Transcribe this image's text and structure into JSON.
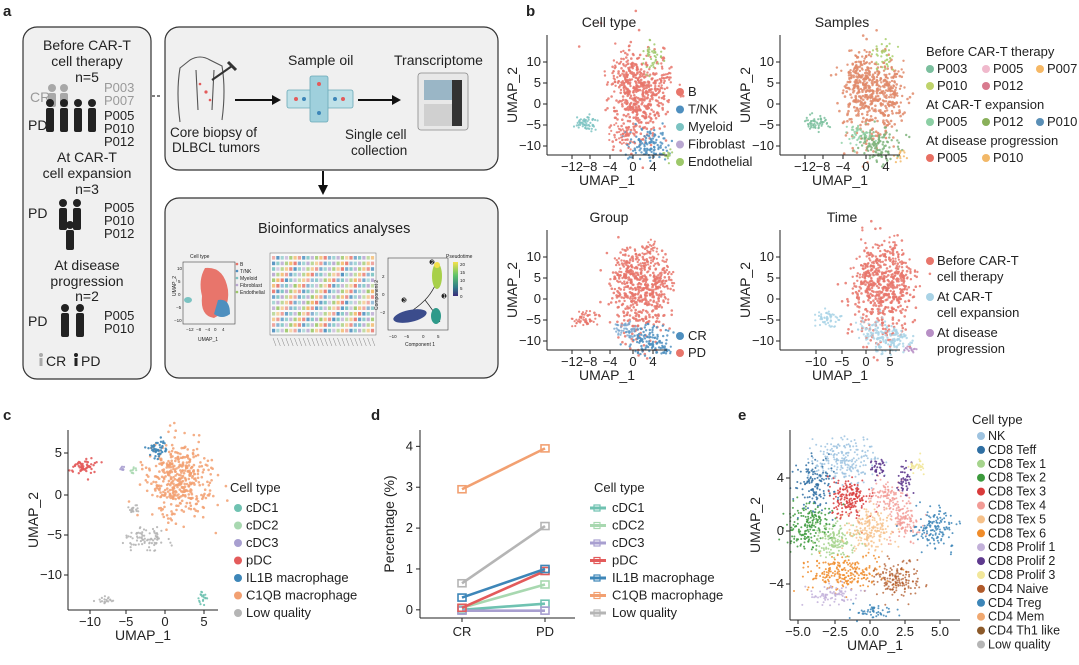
{
  "figure": {
    "panel_letters": {
      "a": "a",
      "b": "b",
      "c": "c",
      "d": "d",
      "e": "e"
    },
    "a": {
      "left": {
        "before_title_1": "Before CAR-T",
        "before_title_2": "cell therapy",
        "before_n": "n=5",
        "cr": "CR",
        "cr_ids": [
          "P003",
          "P007"
        ],
        "pd": "PD",
        "pd_ids": [
          "P005",
          "P010",
          "P012"
        ],
        "exp_title_1": "At CAR-T",
        "exp_title_2": "cell expansion",
        "exp_n": "n=3",
        "exp_pd": "PD",
        "exp_ids": [
          "P005",
          "P010",
          "P012"
        ],
        "prog_title_1": "At disease",
        "prog_title_2": "progression",
        "prog_n": "n=2",
        "prog_pd": "PD",
        "prog_ids": [
          "P005",
          "P010"
        ],
        "legend_cr": "CR",
        "legend_pd": "PD"
      },
      "workflow": {
        "biopsy_1": "Core biopsy of",
        "biopsy_2": "DLBCL tumors",
        "sample_oil": "Sample oil",
        "transcriptome": "Transcriptome",
        "single_cell_1": "Single cell",
        "single_cell_2": "collection",
        "bioinf": "Bioinformatics analyses",
        "mini_celltype": "Cell type",
        "mini_legend": [
          "B",
          "T/NK",
          "Myeloid",
          "Fibroblast",
          "Endothelial"
        ],
        "mini_xlabel": "UMAP_1",
        "mini_ylabel": "UMAP_2",
        "mini_xticks": [
          "−12",
          "−8",
          "−4",
          "0",
          "4"
        ],
        "mini_yticks": [
          "10",
          "5",
          "0",
          "−5",
          "−10"
        ],
        "pseudotime": "Pseudotime",
        "pt_ticks": [
          "20",
          "15",
          "10",
          "5",
          "0"
        ],
        "pt_xlabel": "Component 1",
        "pt_ylabel": "Component 2",
        "pt_xticks": [
          "−10",
          "−5",
          "0",
          "5"
        ],
        "pt_yticks": [
          "2",
          "0",
          "−2"
        ],
        "pt_states": [
          "1",
          "2",
          "3"
        ]
      }
    },
    "b": {
      "celltype": {
        "title": "Cell type",
        "xlabel": "UMAP_1",
        "ylabel": "UMAP_2",
        "xticks": [
          "−12",
          "−8",
          "−4",
          "0",
          "4"
        ],
        "yticks": [
          "10",
          "5",
          "0",
          "−5",
          "−10"
        ],
        "legend": [
          {
            "label": "B",
            "color": "#e8756b"
          },
          {
            "label": "T/NK",
            "color": "#4e8fbf"
          },
          {
            "label": "Myeloid",
            "color": "#7bc3c2"
          },
          {
            "label": "Fibroblast",
            "color": "#b9a7d1"
          },
          {
            "label": "Endothelial",
            "color": "#9dc86a"
          }
        ]
      },
      "samples": {
        "title": "Samples",
        "xlabel": "UMAP_1",
        "ylabel": "UMAP_2",
        "xticks": [
          "−12",
          "−8",
          "−4",
          "0",
          "4"
        ],
        "yticks": [
          "10",
          "5",
          "0",
          "−5",
          "−10"
        ],
        "groups": [
          {
            "heading": "Before CAR-T therapy",
            "items": [
              {
                "label": "P003",
                "color": "#7bbf9e"
              },
              {
                "label": "P005",
                "color": "#f0b9cc"
              },
              {
                "label": "P007",
                "color": "#f6b865"
              },
              {
                "label": "P010",
                "color": "#bfd36b"
              },
              {
                "label": "P012",
                "color": "#d87a8e"
              }
            ]
          },
          {
            "heading": "At CAR-T expansion",
            "items": [
              {
                "label": "P005",
                "color": "#8ccfa4"
              },
              {
                "label": "P012",
                "color": "#89b05a"
              },
              {
                "label": "P010",
                "color": "#5a8fb6"
              }
            ]
          },
          {
            "heading": "At disease progression",
            "items": [
              {
                "label": "P005",
                "color": "#e86f62"
              },
              {
                "label": "P010",
                "color": "#f2b868"
              }
            ]
          }
        ]
      },
      "group": {
        "title": "Group",
        "xlabel": "UMAP_1",
        "ylabel": "UMAP_2",
        "xticks": [
          "−12",
          "−8",
          "−4",
          "0",
          "4"
        ],
        "yticks": [
          "10",
          "5",
          "0",
          "−5",
          "−10"
        ],
        "legend": [
          {
            "label": "CR",
            "color": "#4e8fbf"
          },
          {
            "label": "PD",
            "color": "#e8756b"
          }
        ]
      },
      "time": {
        "title": "Time",
        "xlabel": "UMAP_1",
        "ylabel": "UMAP_2",
        "xticks": [
          "−10",
          "−5",
          "0",
          "5"
        ],
        "yticks": [
          "10",
          "5",
          "0",
          "−5",
          "−10"
        ],
        "legend": [
          {
            "label1": "Before CAR-T",
            "label2": "cell therapy",
            "color": "#e8756b"
          },
          {
            "label1": "At CAR-T",
            "label2": "cell expansion",
            "color": "#a9d3e6"
          },
          {
            "label1": "At disease",
            "label2": "progression",
            "color": "#b78fc5"
          }
        ]
      }
    },
    "c": {
      "xlabel": "UMAP_1",
      "ylabel": "UMAP_2",
      "xticks": [
        "−10",
        "−5",
        "0",
        "5"
      ],
      "yticks": [
        "5",
        "0",
        "−5",
        "−10"
      ],
      "legend_title": "Cell type",
      "legend": [
        {
          "label": "cDC1",
          "color": "#6fc2b1"
        },
        {
          "label": "cDC2",
          "color": "#a8d8b0"
        },
        {
          "label": "cDC3",
          "color": "#a89fd0"
        },
        {
          "label": "pDC",
          "color": "#e35b5b"
        },
        {
          "label": "IL1B macrophage",
          "color": "#3d86b8"
        },
        {
          "label": "C1QB macrophage",
          "color": "#f2a071"
        },
        {
          "label": "Low quality",
          "color": "#b5b5b5"
        }
      ]
    },
    "d": {
      "legend_title": "Cell type",
      "legend": [
        {
          "label": "cDC1",
          "color": "#6fc2b1"
        },
        {
          "label": "cDC2",
          "color": "#a8d8b0"
        },
        {
          "label": "cDC3",
          "color": "#a89fd0"
        },
        {
          "label": "pDC",
          "color": "#e35b5b"
        },
        {
          "label": "IL1B macrophage",
          "color": "#3d86b8"
        },
        {
          "label": "C1QB macrophage",
          "color": "#f2a071"
        },
        {
          "label": "Low quality",
          "color": "#b5b5b5"
        }
      ]
    },
    "e": {
      "xlabel": "UMAP_1",
      "ylabel": "UMAP_2",
      "xticks": [
        "−5.0",
        "−2.5",
        "0.0",
        "2.5",
        "5.0"
      ],
      "yticks": [
        "4",
        "0",
        "−4"
      ],
      "legend_title": "Cell type",
      "legend": [
        {
          "label": "NK",
          "color": "#9ec3e0"
        },
        {
          "label": "CD8 Teff",
          "color": "#2f6fa3"
        },
        {
          "label": "CD8 Tex 1",
          "color": "#a5d48c"
        },
        {
          "label": "CD8 Tex 2",
          "color": "#3c9a3c"
        },
        {
          "label": "CD8 Tex 3",
          "color": "#d93b3b"
        },
        {
          "label": "CD8 Tex 4",
          "color": "#f29b96"
        },
        {
          "label": "CD8 Tex 5",
          "color": "#f6c18a"
        },
        {
          "label": "CD8 Tex 6",
          "color": "#f08c2a"
        },
        {
          "label": "CD8 Prolif 1",
          "color": "#c2b0d9"
        },
        {
          "label": "CD8 Prolif 2",
          "color": "#5e3a8e"
        },
        {
          "label": "CD8 Prolif 3",
          "color": "#f2e79a"
        },
        {
          "label": "CD4 Naive",
          "color": "#b05a2a"
        },
        {
          "label": "CD4 Treg",
          "color": "#3d86b8"
        },
        {
          "label": "CD4 Mem",
          "color": "#f0a870"
        },
        {
          "label": "CD4 Th1 like",
          "color": "#8c5a2a"
        },
        {
          "label": "Low quality",
          "color": "#b5b5b5"
        }
      ]
    }
  },
  "chart_data": [
    {
      "type": "line",
      "panel": "d",
      "categories": [
        "CR",
        "PD"
      ],
      "ylabel": "Percentage (%)",
      "xlabel": "",
      "ylim": [
        -0.2,
        4.4
      ],
      "yticks": [
        0,
        1,
        2,
        3,
        4
      ],
      "series": [
        {
          "name": "cDC1",
          "color": "#6fc2b1",
          "values": [
            0.0,
            0.15
          ]
        },
        {
          "name": "cDC2",
          "color": "#a8d8b0",
          "values": [
            0.05,
            0.62
          ]
        },
        {
          "name": "cDC3",
          "color": "#a89fd0",
          "values": [
            -0.02,
            -0.02
          ]
        },
        {
          "name": "pDC",
          "color": "#e35b5b",
          "values": [
            0.05,
            0.95
          ]
        },
        {
          "name": "IL1B macrophage",
          "color": "#3d86b8",
          "values": [
            0.3,
            1.0
          ]
        },
        {
          "name": "C1QB macrophage",
          "color": "#f2a071",
          "values": [
            2.95,
            3.95
          ]
        },
        {
          "name": "Low quality",
          "color": "#b5b5b5",
          "values": [
            0.65,
            2.05
          ]
        }
      ]
    }
  ]
}
